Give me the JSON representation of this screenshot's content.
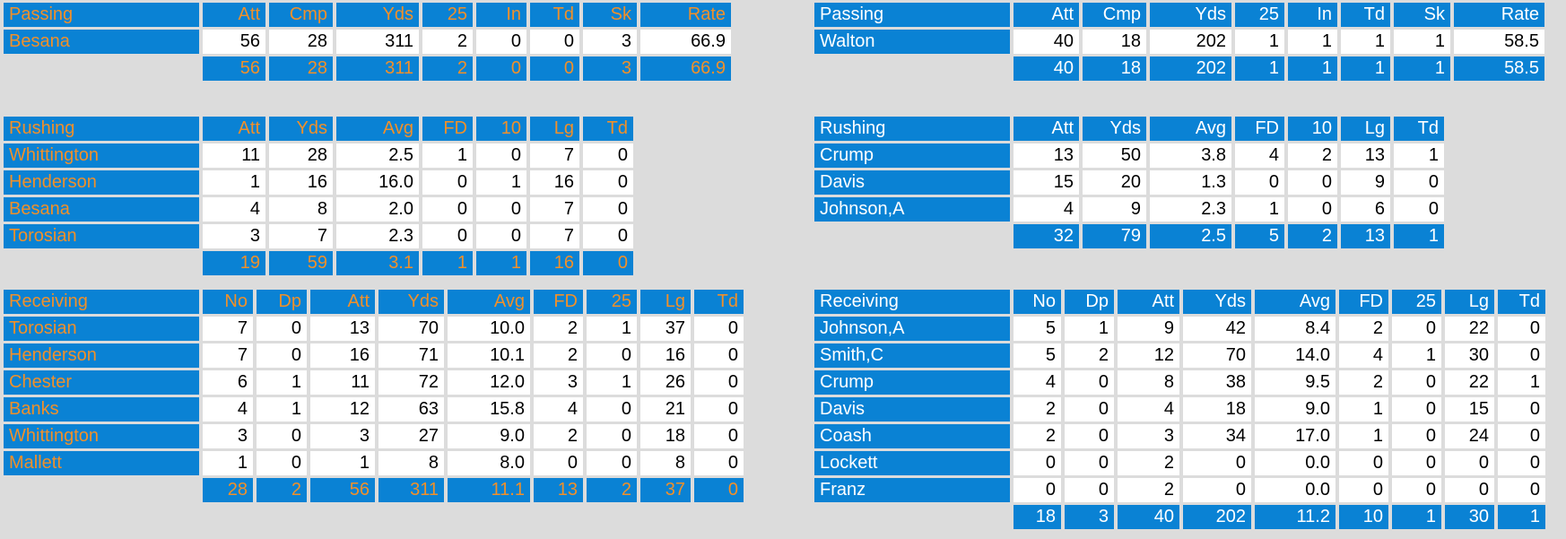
{
  "teams": [
    {
      "passing": {
        "header": [
          "Passing",
          "Att",
          "Cmp",
          "Yds",
          "25",
          "In",
          "Td",
          "Sk",
          "Rate"
        ],
        "rows": [
          [
            "Besana",
            "56",
            "28",
            "311",
            "2",
            "0",
            "0",
            "3",
            "66.9"
          ]
        ],
        "totals": [
          "56",
          "28",
          "311",
          "2",
          "0",
          "0",
          "3",
          "66.9"
        ]
      },
      "rushing": {
        "header": [
          "Rushing",
          "Att",
          "Yds",
          "Avg",
          "FD",
          "10",
          "Lg",
          "Td"
        ],
        "rows": [
          [
            "Whittington",
            "11",
            "28",
            "2.5",
            "1",
            "0",
            "7",
            "0"
          ],
          [
            "Henderson",
            "1",
            "16",
            "16.0",
            "0",
            "1",
            "16",
            "0"
          ],
          [
            "Besana",
            "4",
            "8",
            "2.0",
            "0",
            "0",
            "7",
            "0"
          ],
          [
            "Torosian",
            "3",
            "7",
            "2.3",
            "0",
            "0",
            "7",
            "0"
          ]
        ],
        "totals": [
          "19",
          "59",
          "3.1",
          "1",
          "1",
          "16",
          "0"
        ]
      },
      "receiving": {
        "header": [
          "Receiving",
          "No",
          "Dp",
          "Att",
          "Yds",
          "Avg",
          "FD",
          "25",
          "Lg",
          "Td"
        ],
        "rows": [
          [
            "Torosian",
            "7",
            "0",
            "13",
            "70",
            "10.0",
            "2",
            "1",
            "37",
            "0"
          ],
          [
            "Henderson",
            "7",
            "0",
            "16",
            "71",
            "10.1",
            "2",
            "0",
            "16",
            "0"
          ],
          [
            "Chester",
            "6",
            "1",
            "11",
            "72",
            "12.0",
            "3",
            "1",
            "26",
            "0"
          ],
          [
            "Banks",
            "4",
            "1",
            "12",
            "63",
            "15.8",
            "4",
            "0",
            "21",
            "0"
          ],
          [
            "Whittington",
            "3",
            "0",
            "3",
            "27",
            "9.0",
            "2",
            "0",
            "18",
            "0"
          ],
          [
            "Mallett",
            "1",
            "0",
            "1",
            "8",
            "8.0",
            "0",
            "0",
            "8",
            "0"
          ]
        ],
        "totals": [
          "28",
          "2",
          "56",
          "311",
          "11.1",
          "13",
          "2",
          "37",
          "0"
        ]
      }
    },
    {
      "passing": {
        "header": [
          "Passing",
          "Att",
          "Cmp",
          "Yds",
          "25",
          "In",
          "Td",
          "Sk",
          "Rate"
        ],
        "rows": [
          [
            "Walton",
            "40",
            "18",
            "202",
            "1",
            "1",
            "1",
            "1",
            "58.5"
          ]
        ],
        "totals": [
          "40",
          "18",
          "202",
          "1",
          "1",
          "1",
          "1",
          "58.5"
        ]
      },
      "rushing": {
        "header": [
          "Rushing",
          "Att",
          "Yds",
          "Avg",
          "FD",
          "10",
          "Lg",
          "Td"
        ],
        "rows": [
          [
            "Crump",
            "13",
            "50",
            "3.8",
            "4",
            "2",
            "13",
            "1"
          ],
          [
            "Davis",
            "15",
            "20",
            "1.3",
            "0",
            "0",
            "9",
            "0"
          ],
          [
            "Johnson,A",
            "4",
            "9",
            "2.3",
            "1",
            "0",
            "6",
            "0"
          ]
        ],
        "totals": [
          "32",
          "79",
          "2.5",
          "5",
          "2",
          "13",
          "1"
        ]
      },
      "receiving": {
        "header": [
          "Receiving",
          "No",
          "Dp",
          "Att",
          "Yds",
          "Avg",
          "FD",
          "25",
          "Lg",
          "Td"
        ],
        "rows": [
          [
            "Johnson,A",
            "5",
            "1",
            "9",
            "42",
            "8.4",
            "2",
            "0",
            "22",
            "0"
          ],
          [
            "Smith,C",
            "5",
            "2",
            "12",
            "70",
            "14.0",
            "4",
            "1",
            "30",
            "0"
          ],
          [
            "Crump",
            "4",
            "0",
            "8",
            "38",
            "9.5",
            "2",
            "0",
            "22",
            "1"
          ],
          [
            "Davis",
            "2",
            "0",
            "4",
            "18",
            "9.0",
            "1",
            "0",
            "15",
            "0"
          ],
          [
            "Coash",
            "2",
            "0",
            "3",
            "34",
            "17.0",
            "1",
            "0",
            "24",
            "0"
          ],
          [
            "Lockett",
            "0",
            "0",
            "2",
            "0",
            "0.0",
            "0",
            "0",
            "0",
            "0"
          ],
          [
            "Franz",
            "0",
            "0",
            "2",
            "0",
            "0.0",
            "0",
            "0",
            "0",
            "0"
          ]
        ],
        "totals": [
          "18",
          "3",
          "40",
          "202",
          "11.2",
          "10",
          "1",
          "30",
          "1"
        ]
      }
    }
  ]
}
